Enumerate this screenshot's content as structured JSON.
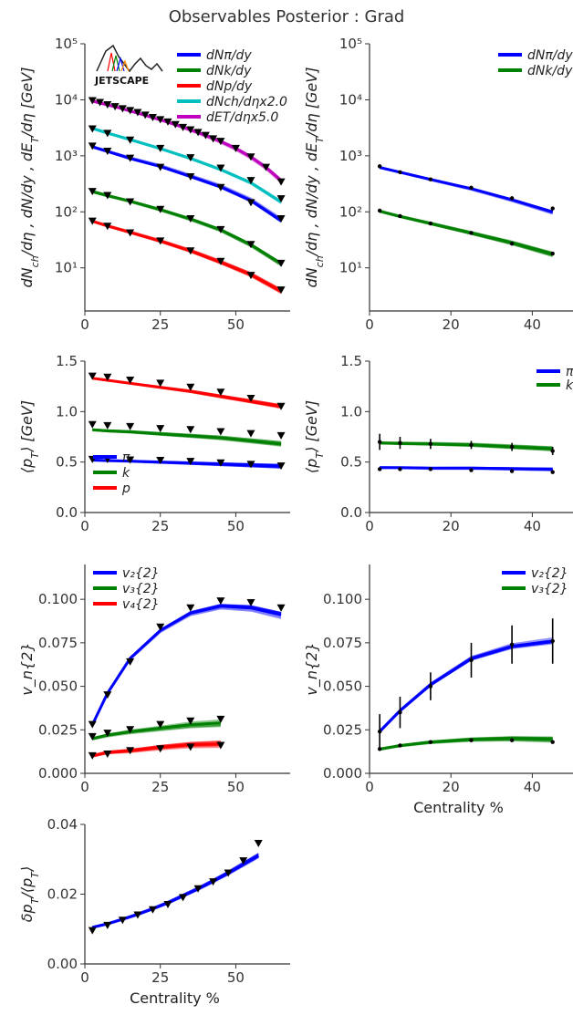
{
  "figure": {
    "title": "Observables Posterior : Grad",
    "logo_text": "JETSCAPE",
    "colors": {
      "pi": "#0000ff",
      "k": "#008000",
      "p": "#ff0000",
      "ch": "#00bfbf",
      "et": "#bf00bf",
      "data": "#000000"
    }
  },
  "chart_data": [
    {
      "id": "yields_left",
      "type": "line",
      "yscale": "log",
      "xlabel": "",
      "ylabel": "dN_ch/dη , dN/dy , dE_T/dη [GeV]",
      "xlim": [
        0,
        68
      ],
      "ylim": [
        1.7,
        100000
      ],
      "xticks": [
        0,
        25,
        50
      ],
      "xtick_labels": [
        "0",
        "25",
        "50"
      ],
      "yticks": [
        10,
        100,
        1000,
        10000,
        100000
      ],
      "ytick_labels": [
        "10¹",
        "10²",
        "10³",
        "10⁴",
        "10⁵"
      ],
      "legend": [
        "dNπ/dy",
        "dNk/dy",
        "dNp/dy",
        "dNch/dηx2.0",
        "dET/dηx5.0"
      ],
      "series": [
        {
          "name": "dNπ/dy",
          "color": "pi",
          "x": [
            2.5,
            7.5,
            15,
            25,
            35,
            45,
            55,
            65
          ],
          "y": [
            1450,
            1200,
            900,
            650,
            430,
            280,
            160,
            70
          ],
          "data": [
            1480,
            1200,
            900,
            620,
            420,
            270,
            145,
            75
          ]
        },
        {
          "name": "dNk/dy",
          "color": "k",
          "x": [
            2.5,
            7.5,
            15,
            25,
            35,
            45,
            55,
            65
          ],
          "y": [
            230,
            195,
            155,
            110,
            75,
            48,
            26,
            12
          ],
          "data": [
            230,
            195,
            150,
            110,
            75,
            48,
            26,
            12
          ]
        },
        {
          "name": "dNp/dy",
          "color": "p",
          "x": [
            2.5,
            7.5,
            15,
            25,
            35,
            45,
            55,
            65
          ],
          "y": [
            68,
            56,
            43,
            30,
            20,
            12.5,
            7.5,
            3.8
          ],
          "data": [
            68,
            55,
            42,
            30,
            20,
            13,
            7.3,
            4
          ]
        },
        {
          "name": "dNch/dηx2.0",
          "color": "ch",
          "x": [
            2.5,
            7.5,
            15,
            25,
            35,
            45,
            55,
            65
          ],
          "y": [
            3100,
            2550,
            1950,
            1350,
            900,
            570,
            330,
            150
          ],
          "data": [
            3000,
            2500,
            1900,
            1350,
            920,
            600,
            360,
            170
          ]
        },
        {
          "name": "dET/dηx5.0",
          "color": "et",
          "x": [
            2.5,
            5,
            7.5,
            10,
            12.5,
            15,
            17.5,
            20,
            22.5,
            25,
            27.5,
            30,
            32.5,
            35,
            37.5,
            40,
            42.5,
            45,
            50,
            55,
            60,
            65
          ],
          "y": [
            9500,
            8800,
            8100,
            7500,
            6900,
            6300,
            5800,
            5300,
            4800,
            4400,
            4000,
            3600,
            3250,
            2900,
            2600,
            2300,
            2050,
            1800,
            1350,
            950,
            620,
            360
          ],
          "data": [
            9600,
            8900,
            8100,
            7500,
            6900,
            6400,
            5900,
            5300,
            4800,
            4400,
            4000,
            3600,
            3200,
            2900,
            2600,
            2300,
            2000,
            1800,
            1350,
            950,
            620,
            340
          ]
        }
      ],
      "show_logo": true
    },
    {
      "id": "yields_right",
      "type": "line",
      "yscale": "log",
      "xlabel": "",
      "ylabel": "dN_ch/dη , dN/dy , dE_T/dη [GeV]",
      "xlim": [
        0,
        50
      ],
      "ylim": [
        1.7,
        100000
      ],
      "xticks": [
        0,
        20,
        40
      ],
      "xtick_labels": [
        "0",
        "20",
        "40"
      ],
      "yticks": [
        10,
        100,
        1000,
        10000,
        100000
      ],
      "ytick_labels": [
        "10¹",
        "10²",
        "10³",
        "10⁴",
        "10⁵"
      ],
      "legend": [
        "dNπ/dy",
        "dNk/dy"
      ],
      "series": [
        {
          "name": "dNπ/dy",
          "color": "pi",
          "x": [
            2.5,
            7.5,
            15,
            25,
            35,
            45
          ],
          "y": [
            620,
            510,
            380,
            260,
            165,
            100
          ],
          "data": [
            650,
            510,
            380,
            270,
            175,
            115
          ]
        },
        {
          "name": "dNk/dy",
          "color": "k",
          "x": [
            2.5,
            7.5,
            15,
            25,
            35,
            45
          ],
          "y": [
            103,
            83,
            62,
            42,
            28,
            17.5
          ],
          "data": [
            105,
            84,
            62,
            42,
            27,
            18
          ]
        }
      ],
      "show_logo": false
    },
    {
      "id": "meanpt_left",
      "type": "line",
      "yscale": "linear",
      "xlabel": "",
      "ylabel": "⟨p_T⟩ [GeV]",
      "xlim": [
        0,
        68
      ],
      "ylim": [
        0,
        1.5
      ],
      "xticks": [
        0,
        25,
        50
      ],
      "xtick_labels": [
        "0",
        "25",
        "50"
      ],
      "yticks": [
        0,
        0.5,
        1.0,
        1.5
      ],
      "ytick_labels": [
        "0.0",
        "0.5",
        "1.0",
        "1.5"
      ],
      "legend": [
        "π",
        "k",
        "p"
      ],
      "series": [
        {
          "name": "π",
          "color": "pi",
          "x": [
            2.5,
            7.5,
            15,
            25,
            35,
            45,
            55,
            65
          ],
          "y": [
            0.52,
            0.515,
            0.51,
            0.5,
            0.49,
            0.48,
            0.47,
            0.46
          ],
          "data": [
            0.525,
            0.525,
            0.52,
            0.515,
            0.505,
            0.49,
            0.475,
            0.46
          ]
        },
        {
          "name": "k",
          "color": "k",
          "x": [
            2.5,
            7.5,
            15,
            25,
            35,
            45,
            55,
            65
          ],
          "y": [
            0.82,
            0.81,
            0.8,
            0.78,
            0.76,
            0.74,
            0.71,
            0.68
          ],
          "data": [
            0.87,
            0.86,
            0.85,
            0.83,
            0.82,
            0.8,
            0.78,
            0.76
          ]
        },
        {
          "name": "p",
          "color": "p",
          "x": [
            2.5,
            7.5,
            15,
            25,
            35,
            45,
            55,
            65
          ],
          "y": [
            1.33,
            1.31,
            1.28,
            1.24,
            1.2,
            1.15,
            1.1,
            1.05
          ],
          "data": [
            1.35,
            1.34,
            1.31,
            1.28,
            1.24,
            1.19,
            1.13,
            1.05
          ]
        }
      ]
    },
    {
      "id": "meanpt_right",
      "type": "line",
      "yscale": "linear",
      "xlabel": "",
      "ylabel": "⟨p_T⟩ [GeV]",
      "xlim": [
        0,
        50
      ],
      "ylim": [
        0,
        1.5
      ],
      "xticks": [
        0,
        20,
        40
      ],
      "xtick_labels": [
        "0",
        "20",
        "40"
      ],
      "yticks": [
        0,
        0.5,
        1.0,
        1.5
      ],
      "ytick_labels": [
        "0.0",
        "0.5",
        "1.0",
        "1.5"
      ],
      "legend": [
        "π",
        "k"
      ],
      "series": [
        {
          "name": "π",
          "color": "pi",
          "x": [
            2.5,
            7.5,
            15,
            25,
            35,
            45
          ],
          "y": [
            0.445,
            0.445,
            0.44,
            0.44,
            0.435,
            0.43
          ],
          "data": [
            0.43,
            0.43,
            0.43,
            0.42,
            0.41,
            0.4
          ],
          "err": [
            0,
            0,
            0,
            0,
            0,
            0
          ]
        },
        {
          "name": "k",
          "color": "k",
          "x": [
            2.5,
            7.5,
            15,
            25,
            35,
            45
          ],
          "y": [
            0.69,
            0.685,
            0.68,
            0.67,
            0.65,
            0.63
          ],
          "data": [
            0.7,
            0.69,
            0.68,
            0.67,
            0.65,
            0.61
          ],
          "err": [
            0.08,
            0.06,
            0.05,
            0.04,
            0.04,
            0.04
          ]
        }
      ]
    },
    {
      "id": "vn_left",
      "type": "line",
      "yscale": "linear",
      "xlabel": "",
      "ylabel": "v_n{2}",
      "xlim": [
        0,
        68
      ],
      "ylim": [
        0,
        0.12
      ],
      "xticks": [
        0,
        25,
        50
      ],
      "xtick_labels": [
        "0",
        "25",
        "50"
      ],
      "yticks": [
        0,
        0.025,
        0.05,
        0.075,
        0.1
      ],
      "ytick_labels": [
        "0.000",
        "0.025",
        "0.050",
        "0.075",
        "0.100"
      ],
      "legend": [
        "v₂{2}",
        "v₃{2}",
        "v₄{2}"
      ],
      "series": [
        {
          "name": "v₂{2}",
          "color": "pi",
          "x": [
            2.5,
            7.5,
            15,
            25,
            35,
            45,
            55,
            65
          ],
          "y": [
            0.028,
            0.046,
            0.066,
            0.082,
            0.092,
            0.096,
            0.095,
            0.091
          ],
          "data": [
            0.028,
            0.045,
            0.064,
            0.084,
            0.095,
            0.099,
            0.098,
            0.095
          ]
        },
        {
          "name": "v₃{2}",
          "color": "k",
          "x": [
            2.5,
            7.5,
            15,
            25,
            35,
            45
          ],
          "y": [
            0.02,
            0.022,
            0.024,
            0.026,
            0.028,
            0.029
          ],
          "data": [
            0.021,
            0.023,
            0.025,
            0.028,
            0.03,
            0.031
          ]
        },
        {
          "name": "v₄{2}",
          "color": "p",
          "x": [
            2.5,
            7.5,
            15,
            25,
            35,
            45
          ],
          "y": [
            0.01,
            0.012,
            0.013,
            0.015,
            0.0165,
            0.017
          ],
          "data": [
            0.01,
            0.011,
            0.013,
            0.014,
            0.015,
            0.016
          ]
        }
      ]
    },
    {
      "id": "vn_right",
      "type": "line",
      "yscale": "linear",
      "xlabel": "Centrality %",
      "ylabel": "v_n{2}",
      "xlim": [
        0,
        50
      ],
      "ylim": [
        0,
        0.12
      ],
      "xticks": [
        0,
        20,
        40
      ],
      "xtick_labels": [
        "0",
        "20",
        "40"
      ],
      "yticks": [
        0,
        0.025,
        0.05,
        0.075,
        0.1
      ],
      "ytick_labels": [
        "0.000",
        "0.025",
        "0.050",
        "0.075",
        "0.100"
      ],
      "legend": [
        "v₂{2}",
        "v₃{2}"
      ],
      "series": [
        {
          "name": "v₂{2}",
          "color": "pi",
          "x": [
            2.5,
            7.5,
            15,
            25,
            35,
            45
          ],
          "y": [
            0.024,
            0.036,
            0.051,
            0.066,
            0.073,
            0.076
          ],
          "data": [
            0.024,
            0.035,
            0.05,
            0.065,
            0.074,
            0.076
          ],
          "err": [
            0.01,
            0.009,
            0.008,
            0.01,
            0.011,
            0.013
          ]
        },
        {
          "name": "v₃{2}",
          "color": "k",
          "x": [
            2.5,
            7.5,
            15,
            25,
            35,
            45
          ],
          "y": [
            0.014,
            0.016,
            0.018,
            0.0195,
            0.02,
            0.0195
          ],
          "data": [
            0.014,
            0.016,
            0.018,
            0.019,
            0.019,
            0.018
          ],
          "err": [
            0,
            0,
            0,
            0,
            0,
            0
          ]
        }
      ]
    },
    {
      "id": "dpt",
      "type": "line",
      "yscale": "linear",
      "xlabel": "Centrality %",
      "ylabel": "δp_T/⟨p_T⟩",
      "xlim": [
        0,
        68
      ],
      "ylim": [
        0,
        0.04
      ],
      "xticks": [
        0,
        25,
        50
      ],
      "xtick_labels": [
        "0",
        "25",
        "50"
      ],
      "yticks": [
        0,
        0.02,
        0.04
      ],
      "ytick_labels": [
        "0.00",
        "0.02",
        "0.04"
      ],
      "legend": [],
      "series": [
        {
          "name": "δpT/⟨pT⟩",
          "color": "pi",
          "x": [
            2.5,
            7.5,
            12.5,
            17.5,
            22.5,
            27.5,
            32.5,
            37.5,
            42.5,
            47.5,
            52.5,
            57.5
          ],
          "y": [
            0.0105,
            0.0115,
            0.0128,
            0.0142,
            0.0158,
            0.0175,
            0.0195,
            0.0215,
            0.0237,
            0.026,
            0.0285,
            0.031
          ],
          "data": [
            0.0095,
            0.011,
            0.0125,
            0.014,
            0.0155,
            0.017,
            0.019,
            0.0215,
            0.0235,
            0.026,
            0.0295,
            0.0345
          ]
        }
      ]
    }
  ]
}
